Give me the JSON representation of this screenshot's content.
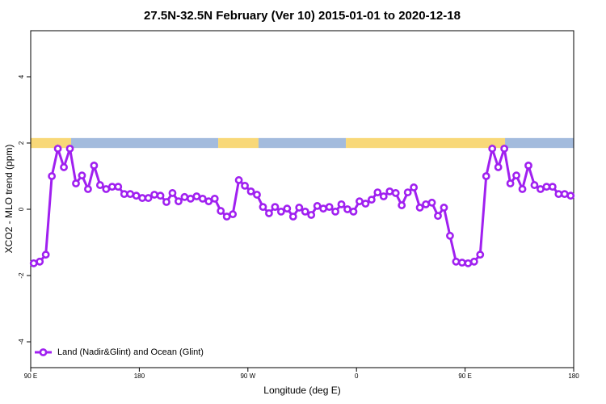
{
  "chart_data": {
    "type": "line",
    "title": "27.5N-32.5N February (Ver 10)   2015-01-01 to 2020-12-18",
    "x_label": "Longitude (deg E)",
    "y_label": "XCO2 - MLO trend (ppm)",
    "xlim": [
      90,
      540
    ],
    "ylim": [
      -4.78,
      5.39
    ],
    "xticks": [
      {
        "value": 90,
        "label": "90 E"
      },
      180,
      {
        "value": 270,
        "label": "90 W"
      },
      {
        "value": 360,
        "label": "0"
      },
      {
        "value": 450,
        "label": "90 E"
      },
      {
        "value": 540,
        "label": "180"
      }
    ],
    "yticks": [
      -4,
      -2,
      0,
      2,
      4
    ],
    "legend_position": "bottomleft",
    "surface_strip": {
      "y": [
        1.85,
        2.15
      ],
      "segments": [
        {
          "range": [
            90,
            123.5
          ],
          "color": "#f8d878"
        },
        {
          "range": [
            123.5,
            245.4
          ],
          "color": "#a3bbdd"
        },
        {
          "range": [
            245.4,
            278.8
          ],
          "color": "#f8d878"
        },
        {
          "range": [
            278.8,
            351.2
          ],
          "color": "#a3bbdd"
        },
        {
          "range": [
            351.2,
            483.1
          ],
          "color": "#f8d878"
        },
        {
          "range": [
            483.1,
            540
          ],
          "color": "#a3bbdd"
        }
      ]
    },
    "x": [
      92.5,
      97.5,
      102.5,
      107.5,
      112.5,
      117.5,
      122.5,
      127.5,
      132.5,
      137.5,
      142.5,
      147.5,
      152.5,
      157.5,
      162.5,
      167.5,
      172.5,
      177.5,
      182.5,
      187.5,
      192.5,
      197.5,
      202.5,
      207.5,
      212.5,
      217.5,
      222.5,
      227.5,
      232.5,
      237.5,
      242.5,
      247.5,
      252.5,
      257.5,
      262.5,
      267.5,
      272.5,
      277.5,
      282.5,
      287.5,
      292.5,
      297.5,
      302.5,
      307.5,
      312.5,
      317.5,
      322.5,
      327.5,
      332.5,
      337.5,
      342.5,
      347.5,
      352.5,
      357.5,
      362.5,
      367.5,
      372.5,
      377.5,
      382.5,
      387.5,
      392.5,
      397.5,
      402.5,
      407.5,
      412.5,
      417.5,
      422.5,
      427.5,
      432.5,
      437.5,
      442.5,
      447.5,
      452.5,
      457.5,
      462.5,
      467.5,
      472.5,
      477.5,
      482.5,
      487.5,
      492.5,
      497.5,
      502.5,
      507.5,
      512.5,
      517.5,
      522.5,
      527.5,
      532.5,
      537.5
    ],
    "series": [
      {
        "name": "Land (Nadir&Glint) and Ocean (Glint)",
        "color": "#a020f0",
        "values": [
          -1.63,
          -1.58,
          -1.37,
          1.0,
          1.83,
          1.27,
          1.83,
          0.78,
          1.02,
          0.61,
          1.32,
          0.73,
          0.61,
          0.68,
          0.68,
          0.46,
          0.46,
          0.41,
          0.34,
          0.34,
          0.44,
          0.41,
          0.22,
          0.49,
          0.24,
          0.37,
          0.32,
          0.39,
          0.32,
          0.24,
          0.32,
          -0.05,
          -0.22,
          -0.15,
          0.88,
          0.71,
          0.54,
          0.44,
          0.07,
          -0.12,
          0.07,
          -0.07,
          0.02,
          -0.22,
          0.05,
          -0.07,
          -0.17,
          0.1,
          0.02,
          0.07,
          -0.07,
          0.15,
          0,
          -0.07,
          0.24,
          0.17,
          0.29,
          0.51,
          0.39,
          0.54,
          0.49,
          0.12,
          0.51,
          0.66,
          0.05,
          0.15,
          0.2,
          -0.2,
          0.05,
          -0.8,
          -1.58,
          -1.61,
          -1.63,
          -1.58,
          -1.37,
          1.0,
          1.83,
          1.27,
          1.83,
          0.78,
          1.02,
          0.61,
          1.32,
          0.73,
          0.61,
          0.68,
          0.68,
          0.46,
          0.46,
          0.41
        ]
      }
    ]
  }
}
